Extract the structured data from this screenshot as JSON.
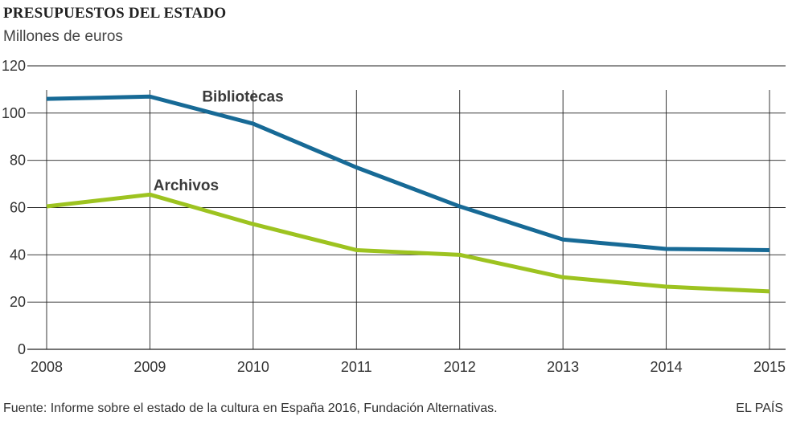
{
  "chart_data": {
    "type": "line",
    "title": "PRESUPUESTOS DEL ESTADO",
    "subtitle": "Millones de euros",
    "xlabel": "",
    "ylabel": "",
    "x": [
      "2008",
      "2009",
      "2010",
      "2011",
      "2012",
      "2013",
      "2014",
      "2015"
    ],
    "ylim": [
      0,
      120
    ],
    "yticks": [
      "0",
      "20",
      "40",
      "60",
      "80",
      "100",
      "120"
    ],
    "grid": "vertical lines at each year, horizontal lines at each y tick",
    "legend": "inline labels",
    "series": [
      {
        "name": "Bibliotecas",
        "color": "#176a96",
        "values": [
          106,
          107,
          95.5,
          77,
          60.5,
          46.5,
          42.5,
          42
        ]
      },
      {
        "name": "Archivos",
        "color": "#9dc320",
        "values": [
          60.5,
          65.5,
          53,
          42,
          40,
          30.5,
          26.5,
          24.5
        ]
      }
    ]
  },
  "footer": {
    "source": "Fuente: Informe sobre el estado de la cultura en España 2016, Fundación Alternativas.",
    "brand": "EL PAÍS"
  }
}
